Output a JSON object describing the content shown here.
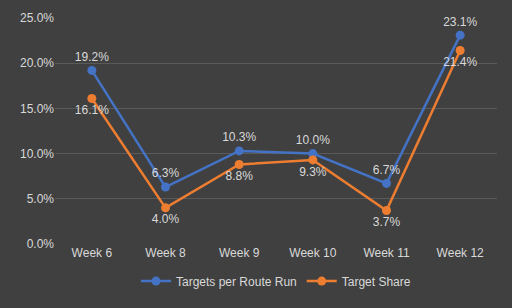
{
  "chart_data": {
    "type": "line",
    "categories": [
      "Week 6",
      "Week 8",
      "Week 9",
      "Week 10",
      "Week 11",
      "Week 12"
    ],
    "series": [
      {
        "name": "Targets per Route Run",
        "color": "#4472c4",
        "values": [
          19.2,
          6.3,
          10.3,
          10.0,
          6.7,
          23.1
        ],
        "value_labels": [
          "19.2%",
          "6.3%",
          "10.3%",
          "10.0%",
          "6.7%",
          "23.1%"
        ],
        "marker": "circle",
        "line_style": "solid"
      },
      {
        "name": "Target Share",
        "color": "#ed7d31",
        "values": [
          16.1,
          4.0,
          8.8,
          9.3,
          3.7,
          21.4
        ],
        "value_labels": [
          "16.1%",
          "4.0%",
          "8.8%",
          "9.3%",
          "3.7%",
          "21.4%"
        ],
        "marker": "circle",
        "line_style": "solid"
      }
    ],
    "ylim": [
      0,
      25
    ],
    "yticks": [
      {
        "value": 0,
        "label": "0.0%"
      },
      {
        "value": 5,
        "label": "5.0%"
      },
      {
        "value": 10,
        "label": "10.0%"
      },
      {
        "value": 15,
        "label": "15.0%"
      },
      {
        "value": 20,
        "label": "20.0%"
      },
      {
        "value": 25,
        "label": "25.0%"
      }
    ],
    "grid": true,
    "legend": "bottom",
    "data_labels": true
  }
}
